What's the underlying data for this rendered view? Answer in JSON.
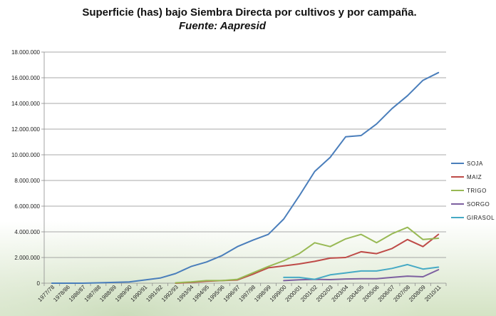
{
  "chart_data": {
    "type": "line",
    "title": "Superficie (has) bajo Siembra Directa por cultivos y por campaña.",
    "subtitle": "Fuente: Aapresid",
    "xlabel": "",
    "ylabel": "",
    "ylim": [
      0,
      18000000
    ],
    "yticks": [
      0,
      2000000,
      4000000,
      6000000,
      8000000,
      10000000,
      12000000,
      14000000,
      16000000,
      18000000
    ],
    "ytick_labels": [
      "0",
      "2.000.000",
      "4.000.000",
      "6.000.000",
      "8.000.000",
      "10.000.000",
      "12.000.000",
      "14.000.000",
      "16.000.000",
      "18.000.000"
    ],
    "grid": "horizontal",
    "legend_position": "right",
    "categories": [
      "1977/78",
      "1978/86",
      "1986/87",
      "1987/88",
      "1988/89",
      "1989/90",
      "1990/91",
      "1991/92",
      "1992/93",
      "1993/94",
      "1994/95",
      "1995/96",
      "1996/97",
      "1997/98",
      "1998/99",
      "1999/00",
      "2000/01",
      "2001/02",
      "2002/03",
      "2003/04",
      "2004/05",
      "2005/06",
      "2006/07",
      "2007/08",
      "2008/09",
      "2010/11"
    ],
    "series": [
      {
        "name": "SOJA",
        "color": "#4a7ebb",
        "values": [
          0,
          0,
          0,
          30000,
          60000,
          100000,
          250000,
          400000,
          750000,
          1300000,
          1650000,
          2150000,
          2850000,
          3350000,
          3800000,
          5000000,
          6800000,
          8700000,
          9800000,
          11400000,
          11500000,
          12400000,
          13600000,
          14600000,
          15800000,
          16400000
        ]
      },
      {
        "name": "MAIZ",
        "color": "#be4b48",
        "values": [
          null,
          null,
          null,
          null,
          null,
          null,
          null,
          null,
          0,
          60000,
          150000,
          200000,
          250000,
          700000,
          1200000,
          1350000,
          1500000,
          1700000,
          1950000,
          2000000,
          2450000,
          2300000,
          2700000,
          3400000,
          2850000,
          3800000
        ]
      },
      {
        "name": "TRIGO",
        "color": "#98b954",
        "values": [
          null,
          null,
          null,
          null,
          null,
          null,
          null,
          null,
          30000,
          100000,
          200000,
          200000,
          300000,
          800000,
          1300000,
          1750000,
          2300000,
          3150000,
          2850000,
          3450000,
          3800000,
          3150000,
          3850000,
          4350000,
          3400000,
          3500000
        ]
      },
      {
        "name": "SORGO",
        "color": "#7d60a0",
        "values": [
          null,
          null,
          null,
          null,
          null,
          null,
          null,
          null,
          null,
          null,
          null,
          null,
          null,
          null,
          null,
          200000,
          260000,
          300000,
          280000,
          330000,
          350000,
          350000,
          450000,
          550000,
          500000,
          1050000
        ]
      },
      {
        "name": "GIRASOL",
        "color": "#46aac5",
        "values": [
          null,
          null,
          null,
          null,
          null,
          null,
          null,
          null,
          null,
          null,
          null,
          null,
          null,
          null,
          null,
          450000,
          450000,
          300000,
          650000,
          800000,
          950000,
          950000,
          1150000,
          1450000,
          1100000,
          1250000
        ]
      }
    ]
  }
}
